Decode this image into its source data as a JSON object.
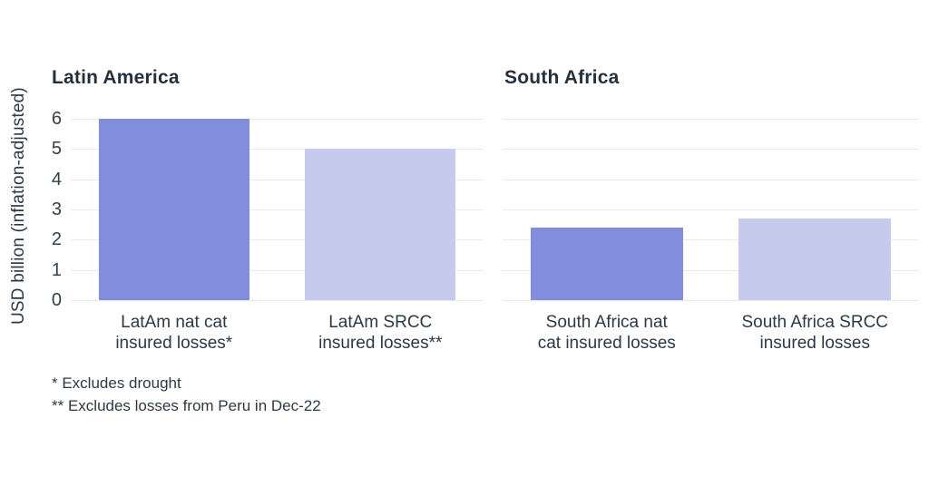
{
  "chart_data": {
    "type": "bar",
    "title": "",
    "ylabel": "USD billion (inflation-adjusted)",
    "xlabel": "",
    "ylim": [
      0,
      6
    ],
    "yticks": [
      6,
      5,
      4,
      3,
      2,
      1,
      0
    ],
    "grid": true,
    "legend": false,
    "panels": [
      {
        "title": "Latin America",
        "categories": [
          "LatAm nat cat insured losses*",
          "LatAm SRCC insured losses**"
        ],
        "category_lines": [
          [
            "LatAm nat cat",
            "insured losses*"
          ],
          [
            "LatAm SRCC",
            "insured losses**"
          ]
        ],
        "values": [
          6.0,
          5.0
        ],
        "colors": [
          "#828EDD",
          "#C6CBEE"
        ]
      },
      {
        "title": "South Africa",
        "categories": [
          "South Africa nat cat insured losses",
          "South Africa SRCC insured losses"
        ],
        "category_lines": [
          [
            "South Africa nat",
            "cat insured losses"
          ],
          [
            "South Africa SRCC",
            "insured losses"
          ]
        ],
        "values": [
          2.4,
          2.7
        ],
        "colors": [
          "#828EDD",
          "#C6CBEE"
        ]
      }
    ],
    "footnotes": [
      "* Excludes drought",
      "** Excludes losses from Peru in Dec-22"
    ],
    "palette": {
      "bar_dark": "#828EDD",
      "bar_light": "#C6CBEE",
      "gridline": "#EAEAEA",
      "text": "#2C3945",
      "background": "#FFFFFF"
    }
  }
}
